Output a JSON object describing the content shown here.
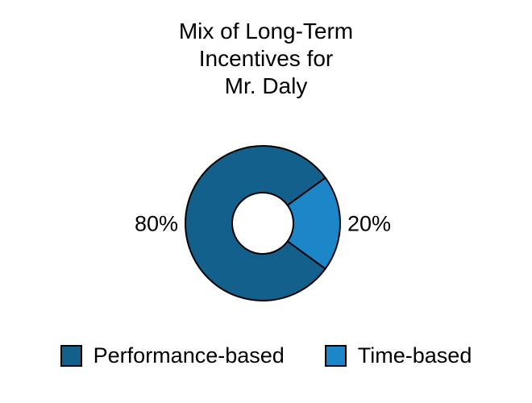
{
  "page": {
    "background_color": "#ffffff",
    "text_color": "#000000"
  },
  "chart_data": {
    "type": "pie",
    "donut": true,
    "title": "Mix of Long-Term\nIncentives for\nMr. Daly",
    "categories": [
      "Performance-based",
      "Time-based"
    ],
    "values": [
      80,
      20
    ],
    "slice_labels": [
      "80%",
      "20%"
    ],
    "colors": [
      "#14608D",
      "#1B87C9"
    ],
    "outline_color": "#000000",
    "inner_radius_ratio": 0.4,
    "start_angle_deg": -36,
    "direction": "clockwise",
    "legend_position": "bottom",
    "legend": [
      {
        "label": "Performance-based",
        "color": "#14608D"
      },
      {
        "label": "Time-based",
        "color": "#1B87C9"
      }
    ]
  }
}
